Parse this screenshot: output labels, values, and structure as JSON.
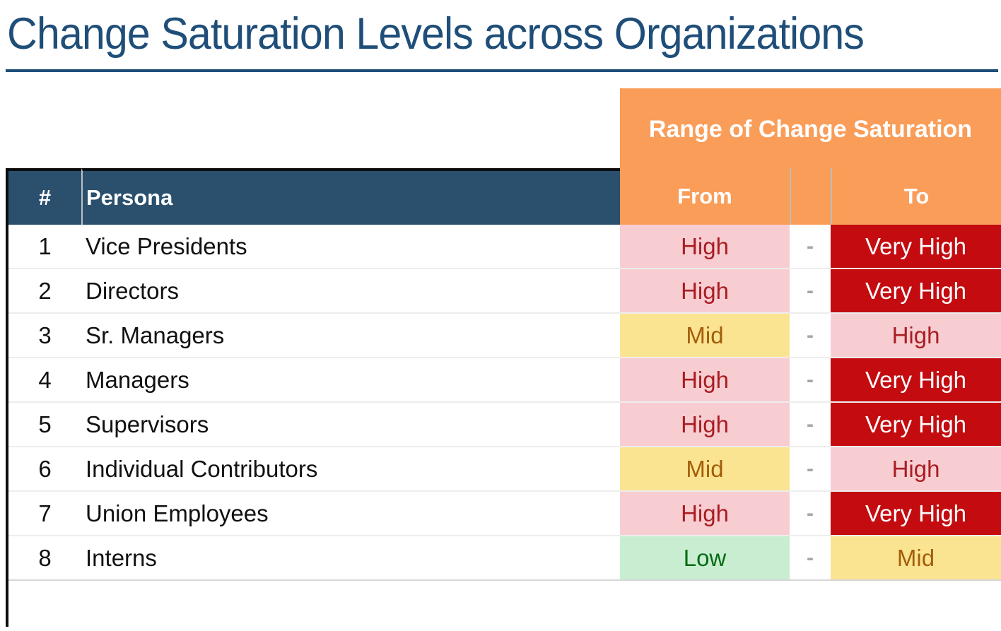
{
  "title": "Change Saturation Levels across Organizations",
  "table": {
    "group_header": "Range of Change Saturation",
    "columns": {
      "num": "#",
      "persona": "Persona",
      "from": "From",
      "to": "To"
    },
    "separator": "-",
    "rows": [
      {
        "num": "1",
        "persona": "Vice Presidents",
        "from": "High",
        "from_level": "high",
        "to": "Very High",
        "to_level": "very-high"
      },
      {
        "num": "2",
        "persona": "Directors",
        "from": "High",
        "from_level": "high",
        "to": "Very High",
        "to_level": "very-high"
      },
      {
        "num": "3",
        "persona": "Sr. Managers",
        "from": "Mid",
        "from_level": "mid",
        "to": "High",
        "to_level": "high"
      },
      {
        "num": "4",
        "persona": "Managers",
        "from": "High",
        "from_level": "high",
        "to": "Very High",
        "to_level": "very-high"
      },
      {
        "num": "5",
        "persona": "Supervisors",
        "from": "High",
        "from_level": "high",
        "to": "Very High",
        "to_level": "very-high"
      },
      {
        "num": "6",
        "persona": "Individual Contributors",
        "from": "Mid",
        "from_level": "mid",
        "to": "High",
        "to_level": "high"
      },
      {
        "num": "7",
        "persona": "Union Employees",
        "from": "High",
        "from_level": "high",
        "to": "Very High",
        "to_level": "very-high"
      },
      {
        "num": "8",
        "persona": "Interns",
        "from": "Low",
        "from_level": "low",
        "to": "Mid",
        "to_level": "mid"
      }
    ]
  },
  "colors": {
    "title": "#1F4E79",
    "header_navy": "#2A506E",
    "header_orange": "#F99D59",
    "level_high_bg": "#F8CDD2",
    "level_high_text": "#A91D23",
    "level_very_high_bg": "#C30B10",
    "level_very_high_text": "#FFFFFF",
    "level_mid_bg": "#FBE491",
    "level_mid_text": "#A35E0B",
    "level_low_bg": "#C9EDD1",
    "level_low_text": "#046B14",
    "separator_text": "#A6A6A6"
  }
}
